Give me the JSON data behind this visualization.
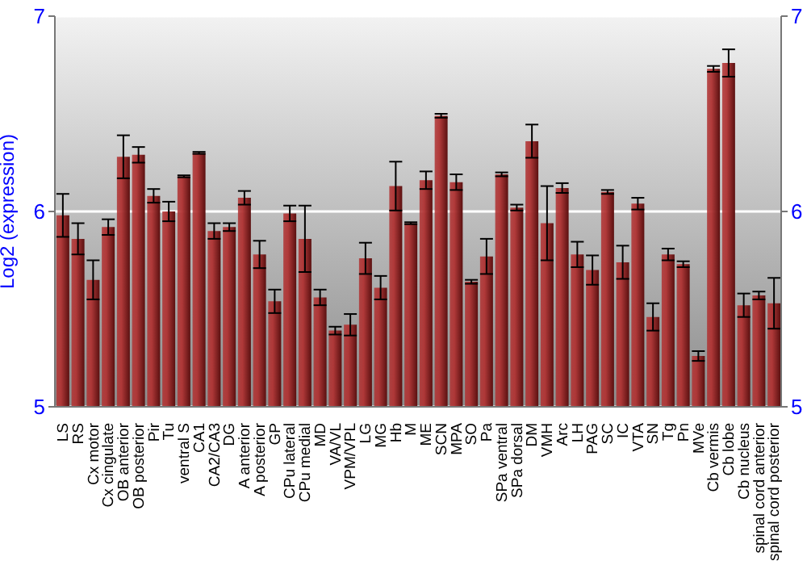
{
  "chart_data": {
    "type": "bar",
    "ylabel": "Log2 (expression)",
    "categories": [
      "LS",
      "RS",
      "Cx motor",
      "Cx cingulate",
      "OB anterior",
      "OB posterior",
      "Pir",
      "Tu",
      "ventral S",
      "CA1",
      "CA2/CA3",
      "DG",
      "A anterior",
      "A posterior",
      "GP",
      "CPu lateral",
      "CPu medial",
      "MD",
      "VA/VL",
      "VPM/VPL",
      "LG",
      "MG",
      "Hb",
      "M",
      "ME",
      "SCN",
      "MPA",
      "SO",
      "Pa",
      "SPa ventral",
      "SPa dorsal",
      "DM",
      "VMH",
      "Arc",
      "LH",
      "PAG",
      "SC",
      "IC",
      "VTA",
      "SN",
      "Tg",
      "Pn",
      "MVe",
      "Cb vermis",
      "Cb lobe",
      "Cb nucleus",
      "spinal cord anterior",
      "spinal cord posterior"
    ],
    "values": [
      5.98,
      5.86,
      5.65,
      5.92,
      6.28,
      6.29,
      6.08,
      6.0,
      6.18,
      6.3,
      5.9,
      5.92,
      6.07,
      5.78,
      5.54,
      5.99,
      5.86,
      5.56,
      5.39,
      5.42,
      5.76,
      5.61,
      6.13,
      5.94,
      6.16,
      6.49,
      6.15,
      5.64,
      5.77,
      6.19,
      6.02,
      6.36,
      5.94,
      6.12,
      5.78,
      5.7,
      6.1,
      5.74,
      6.04,
      5.46,
      5.78,
      5.73,
      5.26,
      6.73,
      6.76,
      5.52,
      5.57,
      5.53
    ],
    "errors": [
      0.11,
      0.08,
      0.1,
      0.04,
      0.11,
      0.04,
      0.035,
      0.05,
      0.005,
      0.005,
      0.04,
      0.02,
      0.035,
      0.07,
      0.06,
      0.04,
      0.17,
      0.04,
      0.02,
      0.055,
      0.08,
      0.06,
      0.125,
      0.005,
      0.045,
      0.01,
      0.04,
      0.01,
      0.09,
      0.01,
      0.015,
      0.085,
      0.19,
      0.025,
      0.065,
      0.075,
      0.01,
      0.085,
      0.03,
      0.07,
      0.03,
      0.015,
      0.025,
      0.015,
      0.07,
      0.06,
      0.02,
      0.13
    ],
    "color": "#b03333",
    "ylim": [
      5,
      7
    ],
    "yticks": [
      5,
      6,
      7
    ],
    "y2lim": [
      5,
      7
    ],
    "y2ticks": [
      5,
      6,
      7
    ],
    "grid": "y"
  }
}
